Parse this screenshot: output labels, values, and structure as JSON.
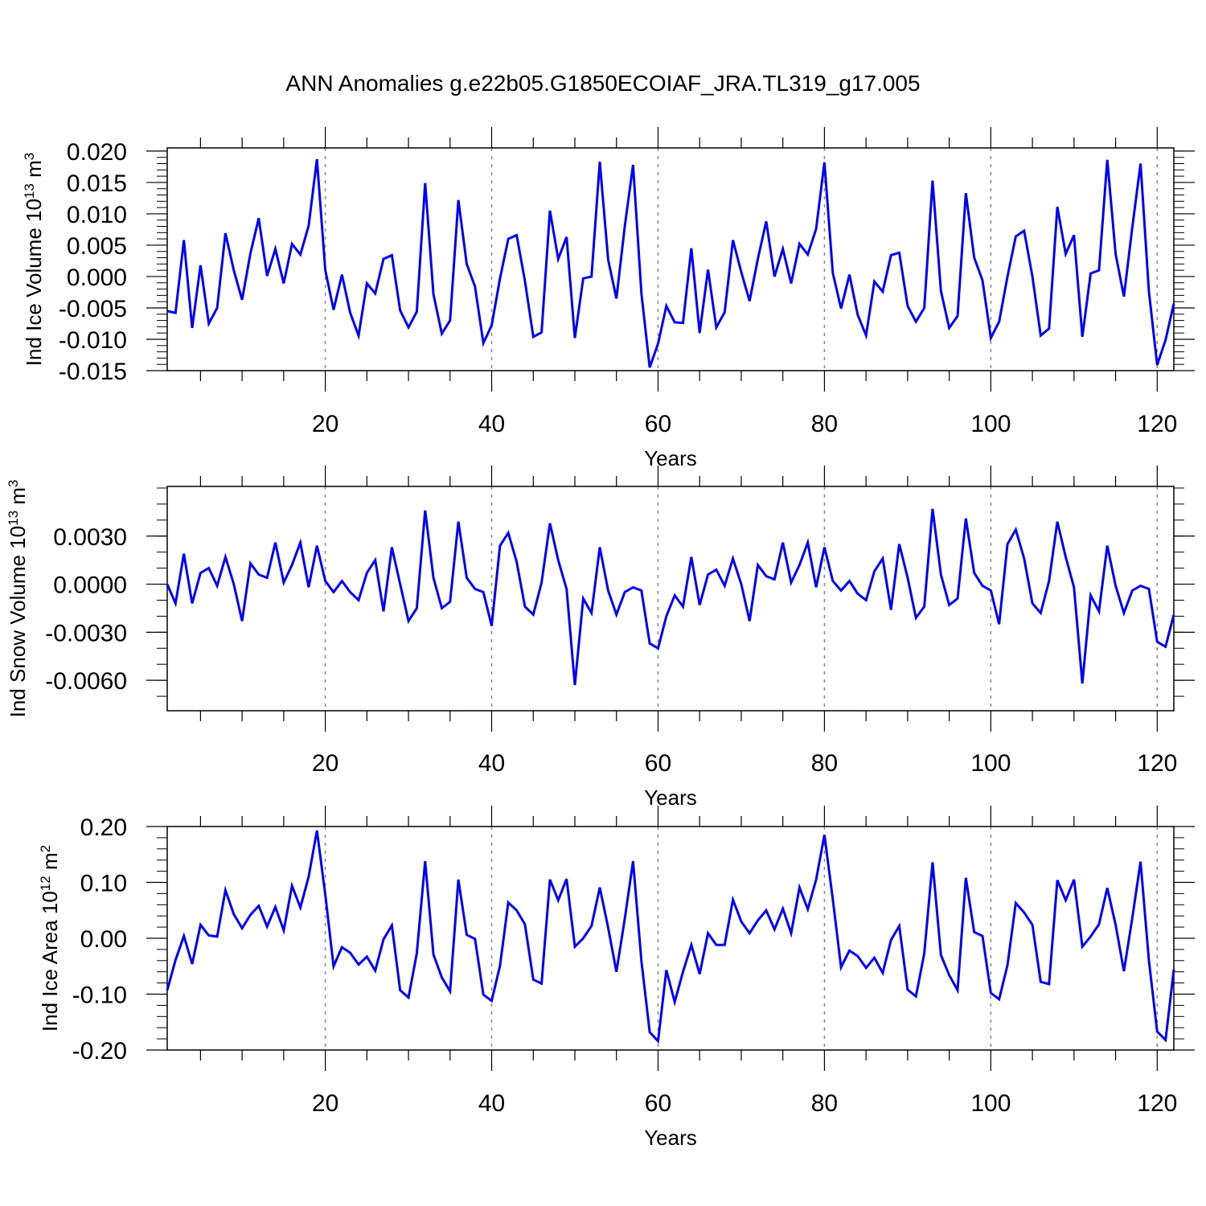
{
  "title": "ANN Anomalies g.e22b05.G1850ECOIAF_JRA.TL319_g17.005",
  "colors": {
    "line": "#0000ff",
    "axis": "#000000",
    "gridline": "#888888"
  },
  "chart_data": [
    {
      "type": "line",
      "ylabel": "Ind Ice Volume 10",
      "ylabel_exp": "13",
      "ylabel_unit": "m",
      "ylabel_unit_exp": "3",
      "xlabel": "Years",
      "xlim": [
        1,
        122
      ],
      "ylim": [
        -0.015,
        0.0205
      ],
      "xticks": [
        20,
        40,
        60,
        80,
        100,
        120
      ],
      "yticks": [
        -0.015,
        -0.01,
        -0.005,
        0.0,
        0.005,
        0.01,
        0.015,
        0.02
      ],
      "ytick_labels": [
        "-0.015",
        "-0.010",
        "-0.005",
        "0.000",
        "0.005",
        "0.010",
        "0.015",
        "0.020"
      ],
      "yminor": 0.001,
      "series": [
        {
          "x": [
            1,
            2,
            3,
            4,
            5,
            6,
            7,
            8,
            9,
            10,
            11,
            12,
            13,
            14,
            15,
            16,
            17,
            18,
            19,
            20,
            21,
            22,
            23,
            24,
            25,
            26,
            27,
            28,
            29,
            30,
            31,
            32,
            33,
            34,
            35,
            36,
            37,
            38,
            39,
            40,
            41,
            42,
            43,
            44,
            45,
            46,
            47,
            48,
            49,
            50,
            51,
            52,
            53,
            54,
            55,
            56,
            57,
            58,
            59,
            60,
            61,
            62,
            63,
            64,
            65,
            66,
            67,
            68,
            69,
            70,
            71,
            72,
            73,
            74,
            75,
            76,
            77,
            78,
            79,
            80,
            81,
            82,
            83,
            84,
            85,
            86,
            87,
            88,
            89,
            90,
            91,
            92,
            93,
            94,
            95,
            96,
            97,
            98,
            99,
            100,
            101,
            102,
            103,
            104,
            105,
            106,
            107,
            108,
            109,
            110,
            111,
            112,
            113,
            114,
            115,
            116,
            117,
            118,
            119,
            120,
            121,
            122
          ],
          "values": [
            -0.0055,
            -0.0058,
            0.0058,
            -0.0082,
            0.0018,
            -0.0075,
            -0.005,
            0.0069,
            0.001,
            -0.0037,
            0.0037,
            0.0093,
            0.0001,
            0.0044,
            -0.0011,
            0.0052,
            0.0035,
            0.0081,
            0.0187,
            0.001,
            -0.0053,
            0.0003,
            -0.0058,
            -0.0094,
            -0.0011,
            -0.0027,
            0.0028,
            0.0034,
            -0.0054,
            -0.0081,
            -0.0056,
            0.0149,
            -0.0028,
            -0.0091,
            -0.007,
            0.0122,
            0.002,
            -0.0016,
            -0.0106,
            -0.0078,
            -0.0003,
            0.006,
            0.0066,
            -0.0007,
            -0.0096,
            -0.0089,
            0.0105,
            0.0028,
            0.0063,
            -0.0098,
            -0.0003,
            0.0,
            0.0183,
            0.0027,
            -0.0035,
            0.008,
            0.0178,
            -0.0027,
            -0.0145,
            -0.0107,
            -0.0047,
            -0.0073,
            -0.0074,
            0.0045,
            -0.009,
            0.0011,
            -0.0081,
            -0.0057,
            0.0058,
            0.0007,
            -0.0039,
            0.0028,
            0.0088,
            0.0,
            0.0044,
            -0.0011,
            0.0052,
            0.0035,
            0.0076,
            0.0182,
            0.0006,
            -0.0051,
            0.0003,
            -0.0061,
            -0.0094,
            -0.0008,
            -0.0024,
            0.0034,
            0.0038,
            -0.0047,
            -0.0072,
            -0.005,
            0.0153,
            -0.0023,
            -0.0082,
            -0.0063,
            0.0133,
            0.003,
            -0.0006,
            -0.0098,
            -0.0072,
            0.0,
            0.0064,
            0.0073,
            0.0,
            -0.0094,
            -0.0083,
            0.0111,
            0.0036,
            0.0066,
            -0.0096,
            0.0005,
            0.001,
            0.0186,
            0.0036,
            -0.0032,
            0.0078,
            0.018,
            -0.0024,
            -0.0141,
            -0.0101,
            -0.0043
          ]
        }
      ]
    },
    {
      "type": "line",
      "ylabel": "Ind Snow Volume 10",
      "ylabel_exp": "13",
      "ylabel_unit": "m",
      "ylabel_unit_exp": "3",
      "xlabel": "Years",
      "xlim": [
        1,
        122
      ],
      "ylim": [
        -0.0079,
        0.0061
      ],
      "xticks": [
        20,
        40,
        60,
        80,
        100,
        120
      ],
      "yticks": [
        -0.006,
        -0.003,
        0.0,
        0.003
      ],
      "ytick_labels": [
        "-0.0060",
        "-0.0030",
        "0.0000",
        "0.0030"
      ],
      "yminor": 0.001,
      "series": [
        {
          "x": [
            1,
            2,
            3,
            4,
            5,
            6,
            7,
            8,
            9,
            10,
            11,
            12,
            13,
            14,
            15,
            16,
            17,
            18,
            19,
            20,
            21,
            22,
            23,
            24,
            25,
            26,
            27,
            28,
            29,
            30,
            31,
            32,
            33,
            34,
            35,
            36,
            37,
            38,
            39,
            40,
            41,
            42,
            43,
            44,
            45,
            46,
            47,
            48,
            49,
            50,
            51,
            52,
            53,
            54,
            55,
            56,
            57,
            58,
            59,
            60,
            61,
            62,
            63,
            64,
            65,
            66,
            67,
            68,
            69,
            70,
            71,
            72,
            73,
            74,
            75,
            76,
            77,
            78,
            79,
            80,
            81,
            82,
            83,
            84,
            85,
            86,
            87,
            88,
            89,
            90,
            91,
            92,
            93,
            94,
            95,
            96,
            97,
            98,
            99,
            100,
            101,
            102,
            103,
            104,
            105,
            106,
            107,
            108,
            109,
            110,
            111,
            112,
            113,
            114,
            115,
            116,
            117,
            118,
            119,
            120,
            121,
            122
          ],
          "values": [
            0.0,
            -0.0012,
            0.0019,
            -0.0012,
            0.0007,
            0.001,
            -0.0001,
            0.0017,
            0.0,
            -0.0023,
            0.0013,
            0.0006,
            0.0004,
            0.0026,
            0.0001,
            0.0012,
            0.0026,
            -0.0002,
            0.0024,
            0.0002,
            -0.0005,
            0.0002,
            -0.0005,
            -0.001,
            0.0007,
            0.0015,
            -0.0017,
            0.0023,
            0.0,
            -0.0023,
            -0.0015,
            0.0046,
            0.0004,
            -0.0015,
            -0.0011,
            0.0039,
            0.0004,
            -0.0003,
            -0.0005,
            -0.0026,
            0.0024,
            0.0032,
            0.0014,
            -0.0014,
            -0.0019,
            0.0001,
            0.0038,
            0.0015,
            -0.0003,
            -0.0063,
            -0.0009,
            -0.0018,
            0.0023,
            -0.0004,
            -0.0019,
            -0.0005,
            -0.0002,
            -0.0004,
            -0.0037,
            -0.004,
            -0.002,
            -0.0007,
            -0.0014,
            0.0017,
            -0.0013,
            0.0006,
            0.0009,
            -0.0001,
            0.0016,
            0.0,
            -0.0023,
            0.0012,
            0.0005,
            0.0003,
            0.0026,
            0.0001,
            0.0012,
            0.0026,
            -0.0002,
            0.0023,
            0.0002,
            -0.0004,
            0.0002,
            -0.0006,
            -0.001,
            0.0008,
            0.0016,
            -0.0016,
            0.0025,
            0.0004,
            -0.0021,
            -0.0014,
            0.0047,
            0.0006,
            -0.0013,
            -0.0009,
            0.0041,
            0.0007,
            -0.0001,
            -0.0004,
            -0.0025,
            0.0025,
            0.0034,
            0.0016,
            -0.0012,
            -0.0018,
            0.0002,
            0.0039,
            0.0017,
            -0.0002,
            -0.0062,
            -0.0007,
            -0.0017,
            0.0024,
            -0.0001,
            -0.0018,
            -0.0004,
            -0.0001,
            -0.0003,
            -0.0036,
            -0.0039,
            -0.0019
          ]
        }
      ]
    },
    {
      "type": "line",
      "ylabel": "Ind Ice Area 10",
      "ylabel_exp": "12",
      "ylabel_unit": "m",
      "ylabel_unit_exp": "2",
      "xlabel": "Years",
      "xlim": [
        1,
        122
      ],
      "ylim": [
        -0.2,
        0.2
      ],
      "xticks": [
        20,
        40,
        60,
        80,
        100,
        120
      ],
      "yticks": [
        -0.2,
        -0.1,
        0.0,
        0.1,
        0.2
      ],
      "ytick_labels": [
        "-0.20",
        "-0.10",
        "0.00",
        "0.10",
        "0.20"
      ],
      "yminor": 0.02,
      "series": [
        {
          "x": [
            1,
            2,
            3,
            4,
            5,
            6,
            7,
            8,
            9,
            10,
            11,
            12,
            13,
            14,
            15,
            16,
            17,
            18,
            19,
            20,
            21,
            22,
            23,
            24,
            25,
            26,
            27,
            28,
            29,
            30,
            31,
            32,
            33,
            34,
            35,
            36,
            37,
            38,
            39,
            40,
            41,
            42,
            43,
            44,
            45,
            46,
            47,
            48,
            49,
            50,
            51,
            52,
            53,
            54,
            55,
            56,
            57,
            58,
            59,
            60,
            61,
            62,
            63,
            64,
            65,
            66,
            67,
            68,
            69,
            70,
            71,
            72,
            73,
            74,
            75,
            76,
            77,
            78,
            79,
            80,
            81,
            82,
            83,
            84,
            85,
            86,
            87,
            88,
            89,
            90,
            91,
            92,
            93,
            94,
            95,
            96,
            97,
            98,
            99,
            100,
            101,
            102,
            103,
            104,
            105,
            106,
            107,
            108,
            109,
            110,
            111,
            112,
            113,
            114,
            115,
            116,
            117,
            118,
            119,
            120,
            121,
            122
          ],
          "values": [
            -0.093,
            -0.039,
            0.004,
            -0.046,
            0.024,
            0.005,
            0.003,
            0.086,
            0.043,
            0.018,
            0.042,
            0.058,
            0.021,
            0.056,
            0.014,
            0.094,
            0.055,
            0.11,
            0.193,
            0.078,
            -0.05,
            -0.016,
            -0.026,
            -0.047,
            -0.033,
            -0.058,
            -0.002,
            0.023,
            -0.093,
            -0.106,
            -0.027,
            0.138,
            -0.029,
            -0.07,
            -0.095,
            0.105,
            0.006,
            -0.001,
            -0.101,
            -0.112,
            -0.049,
            0.064,
            0.05,
            0.025,
            -0.074,
            -0.081,
            0.105,
            0.068,
            0.106,
            -0.015,
            0.0,
            0.022,
            0.091,
            0.019,
            -0.06,
            0.035,
            0.138,
            -0.041,
            -0.168,
            -0.184,
            -0.057,
            -0.114,
            -0.06,
            -0.012,
            -0.064,
            0.009,
            -0.012,
            -0.012,
            0.069,
            0.03,
            0.009,
            0.032,
            0.05,
            0.016,
            0.053,
            0.009,
            0.091,
            0.052,
            0.105,
            0.185,
            0.07,
            -0.052,
            -0.022,
            -0.032,
            -0.053,
            -0.035,
            -0.062,
            -0.003,
            0.022,
            -0.092,
            -0.104,
            -0.027,
            0.136,
            -0.03,
            -0.066,
            -0.093,
            0.108,
            0.011,
            0.004,
            -0.098,
            -0.109,
            -0.048,
            0.063,
            0.046,
            0.024,
            -0.078,
            -0.082,
            0.104,
            0.068,
            0.105,
            -0.015,
            0.003,
            0.025,
            0.09,
            0.024,
            -0.059,
            0.036,
            0.137,
            -0.04,
            -0.167,
            -0.182,
            -0.056
          ]
        }
      ]
    }
  ]
}
